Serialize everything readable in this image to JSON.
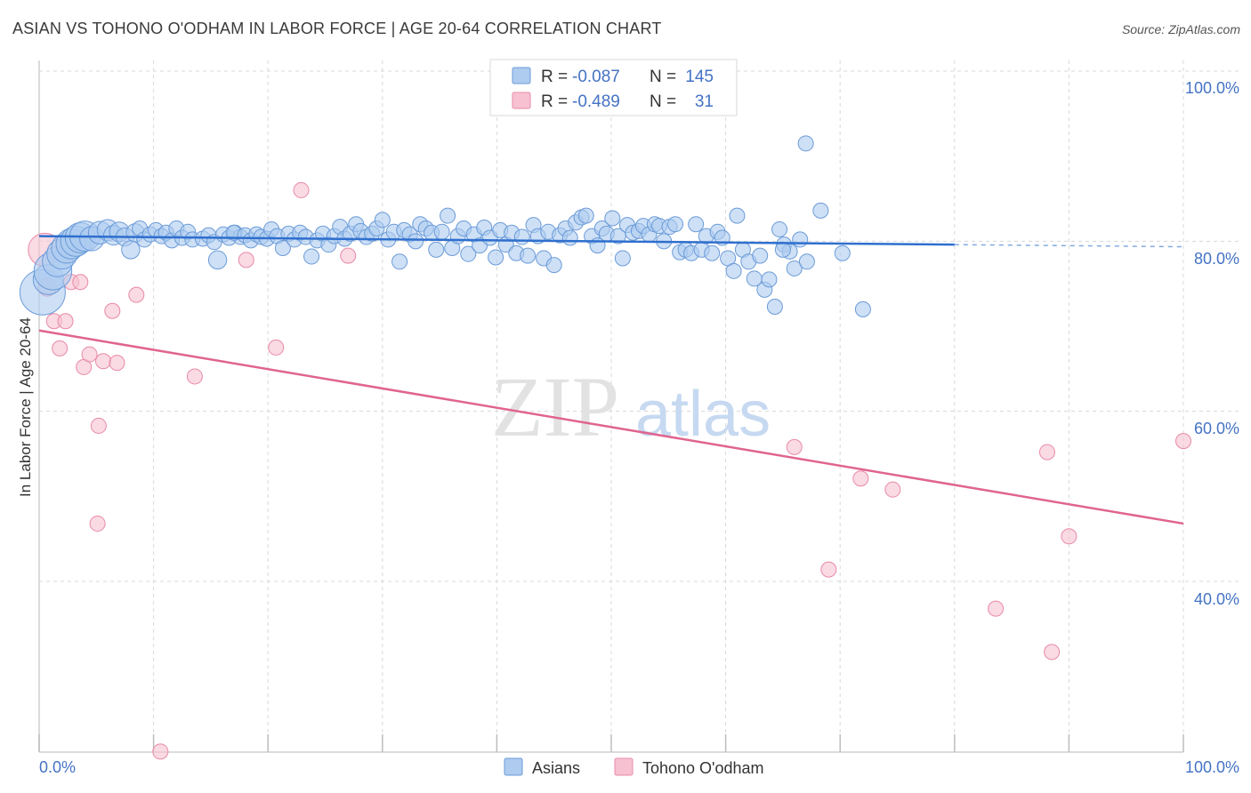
{
  "title": "ASIAN VS TOHONO O'ODHAM IN LABOR FORCE | AGE 20-64 CORRELATION CHART",
  "source": "Source: ZipAtlas.com",
  "watermark": {
    "zip": "ZIP",
    "atlas": "atlas"
  },
  "colors": {
    "asian_fill": "#aecbf0",
    "asian_stroke": "#6b9bd8",
    "asian_line": "#2f6fce",
    "tohono_fill": "#f7c1d1",
    "tohono_stroke": "#e88aa8",
    "tohono_line": "#e0648f",
    "tick_text": "#4472c4",
    "grid": "#d8d8d8"
  },
  "legend": {
    "rows": [
      {
        "r_label": "R =",
        "r_value": "-0.087",
        "n_label": "N =",
        "n_value": "145",
        "series": "asian"
      },
      {
        "r_label": "R =",
        "r_value": "-0.489",
        "n_label": "N =",
        "n_value": "31",
        "series": "tohono"
      }
    ]
  },
  "bottom_legend": [
    "Asians",
    "Tohono O'odham"
  ],
  "chart_data": {
    "type": "scatter",
    "title": "ASIAN VS TOHONO O'ODHAM IN LABOR FORCE | AGE 20-64 CORRELATION CHART",
    "xlabel": "",
    "ylabel": "In Labor Force | Age 20-64",
    "xlim": [
      0,
      100
    ],
    "ylim": [
      20,
      102
    ],
    "x_tick_labels": [
      "0.0%",
      "100.0%"
    ],
    "y_ticks": [
      40,
      60,
      80,
      100
    ],
    "y_tick_labels": [
      "40.0%",
      "60.0%",
      "80.0%",
      "100.0%"
    ],
    "grid": true,
    "legend_placement": "top-center",
    "series": [
      {
        "name": "Asians",
        "r": -0.087,
        "n": 145,
        "trend": {
          "x": [
            0,
            80
          ],
          "y": [
            80.6,
            79.6
          ],
          "dashed_extension_to": 100
        },
        "points": [
          [
            0.3,
            74.0,
            3
          ],
          [
            0.8,
            75.5,
            2
          ],
          [
            1.2,
            76.5,
            2.5
          ],
          [
            1.6,
            77.6,
            2
          ],
          [
            2.0,
            78.5,
            2
          ],
          [
            2.4,
            79.2,
            2
          ],
          [
            2.8,
            79.7,
            2
          ],
          [
            3.2,
            80.0,
            2
          ],
          [
            3.6,
            80.4,
            2
          ],
          [
            4.0,
            80.6,
            2
          ],
          [
            4.6,
            80.3,
            1.6
          ],
          [
            5.3,
            81.0,
            1.5
          ],
          [
            6.0,
            81.3,
            1.4
          ],
          [
            6.5,
            80.7,
            1.3
          ],
          [
            7.0,
            81.1,
            1.3
          ],
          [
            7.5,
            80.5,
            1.2
          ],
          [
            8.0,
            79.0,
            1.2
          ],
          [
            8.4,
            81.0,
            1.2
          ],
          [
            8.8,
            81.5,
            1
          ],
          [
            9.2,
            80.2,
            1
          ],
          [
            9.7,
            80.8,
            1
          ],
          [
            10.2,
            81.3,
            1
          ],
          [
            10.7,
            80.6,
            1
          ],
          [
            11.1,
            81.0,
            1
          ],
          [
            11.6,
            80.1,
            1
          ],
          [
            12.0,
            81.5,
            1
          ],
          [
            12.5,
            80.4,
            1
          ],
          [
            13.0,
            81.1,
            1
          ],
          [
            13.4,
            80.2,
            1
          ],
          [
            14.3,
            80.3,
            1
          ],
          [
            14.8,
            80.7,
            1
          ],
          [
            15.3,
            79.9,
            1
          ],
          [
            15.6,
            77.8,
            1.2
          ],
          [
            16.1,
            80.8,
            1
          ],
          [
            16.6,
            80.4,
            1
          ],
          [
            17.1,
            81.0,
            1
          ],
          [
            17.6,
            80.5,
            1
          ],
          [
            17.0,
            81.0,
            1
          ],
          [
            18.0,
            80.7,
            1
          ],
          [
            18.5,
            80.1,
            1
          ],
          [
            19.0,
            80.8,
            1
          ],
          [
            19.4,
            80.5,
            1
          ],
          [
            19.9,
            80.3,
            1
          ],
          [
            20.3,
            81.4,
            1
          ],
          [
            20.8,
            80.6,
            1
          ],
          [
            21.3,
            79.2,
            1
          ],
          [
            21.8,
            80.9,
            1
          ],
          [
            22.3,
            80.2,
            1
          ],
          [
            22.8,
            81.0,
            1
          ],
          [
            23.3,
            80.5,
            1
          ],
          [
            23.8,
            78.2,
            1
          ],
          [
            24.3,
            80.1,
            1
          ],
          [
            24.8,
            80.9,
            1
          ],
          [
            25.3,
            79.6,
            1
          ],
          [
            25.8,
            80.6,
            1
          ],
          [
            26.3,
            81.7,
            1
          ],
          [
            26.7,
            80.3,
            1
          ],
          [
            27.2,
            80.9,
            1
          ],
          [
            27.7,
            82.0,
            1
          ],
          [
            28.1,
            81.2,
            1
          ],
          [
            28.6,
            80.5,
            1
          ],
          [
            29.1,
            80.9,
            1
          ],
          [
            29.5,
            81.5,
            1
          ],
          [
            30.0,
            82.5,
            1
          ],
          [
            30.5,
            80.2,
            1
          ],
          [
            31.0,
            81.1,
            1
          ],
          [
            31.5,
            77.6,
            1
          ],
          [
            31.9,
            81.3,
            1
          ],
          [
            32.4,
            80.8,
            1
          ],
          [
            32.9,
            80.0,
            1
          ],
          [
            33.3,
            82.0,
            1
          ],
          [
            33.8,
            81.5,
            1
          ],
          [
            34.3,
            81.0,
            1
          ],
          [
            34.7,
            79.0,
            1
          ],
          [
            35.2,
            81.1,
            1
          ],
          [
            35.7,
            83.0,
            1
          ],
          [
            36.1,
            79.2,
            1
          ],
          [
            36.6,
            80.6,
            1
          ],
          [
            37.1,
            81.5,
            1
          ],
          [
            37.5,
            78.5,
            1
          ],
          [
            38.0,
            80.8,
            1
          ],
          [
            38.5,
            79.5,
            1
          ],
          [
            38.9,
            81.6,
            1
          ],
          [
            39.4,
            80.4,
            1
          ],
          [
            39.9,
            78.1,
            1
          ],
          [
            40.3,
            81.3,
            1
          ],
          [
            40.8,
            79.6,
            1
          ],
          [
            41.3,
            81.0,
            1
          ],
          [
            41.7,
            78.6,
            1
          ],
          [
            42.2,
            80.5,
            1
          ],
          [
            42.7,
            78.3,
            1
          ],
          [
            43.2,
            81.9,
            1
          ],
          [
            43.6,
            80.6,
            1
          ],
          [
            44.1,
            78.0,
            1
          ],
          [
            44.5,
            81.1,
            1
          ],
          [
            45.0,
            77.2,
            1
          ],
          [
            45.5,
            80.7,
            1
          ],
          [
            46.0,
            81.5,
            1
          ],
          [
            46.4,
            80.4,
            1
          ],
          [
            46.9,
            82.2,
            1
          ],
          [
            47.4,
            82.8,
            1
          ],
          [
            47.8,
            83.0,
            1
          ],
          [
            48.3,
            80.6,
            1
          ],
          [
            48.8,
            79.5,
            1
          ],
          [
            49.2,
            81.5,
            1
          ],
          [
            49.6,
            80.9,
            1
          ],
          [
            50.1,
            82.7,
            1
          ],
          [
            50.6,
            80.6,
            1
          ],
          [
            51.0,
            78.0,
            1
          ],
          [
            51.4,
            81.9,
            1
          ],
          [
            51.9,
            81.0,
            1
          ],
          [
            52.4,
            81.2,
            1
          ],
          [
            52.8,
            81.8,
            1
          ],
          [
            53.3,
            80.8,
            1
          ],
          [
            53.8,
            82.0,
            1
          ],
          [
            54.2,
            81.8,
            1
          ],
          [
            54.6,
            80.0,
            1
          ],
          [
            55.1,
            81.7,
            1
          ],
          [
            55.6,
            82.0,
            1
          ],
          [
            56.0,
            78.7,
            1
          ],
          [
            56.5,
            79.0,
            1
          ],
          [
            57.0,
            78.6,
            1
          ],
          [
            57.4,
            82.0,
            1
          ],
          [
            57.9,
            79.0,
            1
          ],
          [
            58.3,
            80.6,
            1
          ],
          [
            58.8,
            78.6,
            1
          ],
          [
            59.3,
            81.1,
            1
          ],
          [
            59.7,
            80.4,
            1
          ],
          [
            60.2,
            78.0,
            1
          ],
          [
            60.7,
            76.5,
            1
          ],
          [
            61.0,
            83.0,
            1
          ],
          [
            61.5,
            79.0,
            1
          ],
          [
            62.0,
            77.6,
            1
          ],
          [
            62.5,
            75.6,
            1
          ],
          [
            63.0,
            78.3,
            1
          ],
          [
            63.4,
            74.3,
            1
          ],
          [
            63.8,
            75.5,
            1
          ],
          [
            64.3,
            72.3,
            1
          ],
          [
            64.7,
            81.4,
            1
          ],
          [
            65.1,
            79.6,
            1
          ],
          [
            65.6,
            78.8,
            1
          ],
          [
            66.0,
            76.8,
            1
          ],
          [
            66.5,
            80.2,
            1
          ],
          [
            67.1,
            77.6,
            1
          ],
          [
            68.3,
            83.6,
            1
          ],
          [
            70.2,
            78.6,
            1
          ],
          [
            72.0,
            72.0,
            1
          ],
          [
            65.0,
            79.0,
            1
          ],
          [
            67.0,
            91.5,
            1
          ]
        ]
      },
      {
        "name": "Tohono O'odham",
        "r": -0.489,
        "n": 31,
        "trend": {
          "x": [
            0,
            100
          ],
          "y": [
            69.5,
            46.8
          ]
        },
        "points": [
          [
            0.5,
            79.0,
            2.2
          ],
          [
            0.7,
            74.6,
            1.2
          ],
          [
            1.3,
            70.6,
            1
          ],
          [
            1.8,
            67.4,
            1
          ],
          [
            2.3,
            70.6,
            1
          ],
          [
            2.8,
            75.2,
            1
          ],
          [
            3.6,
            75.2,
            1
          ],
          [
            3.9,
            65.2,
            1
          ],
          [
            4.4,
            66.7,
            1
          ],
          [
            5.2,
            58.3,
            1
          ],
          [
            5.1,
            46.8,
            1
          ],
          [
            5.6,
            65.9,
            1
          ],
          [
            6.4,
            71.8,
            1
          ],
          [
            6.8,
            65.7,
            1
          ],
          [
            8.5,
            73.7,
            1
          ],
          [
            10.6,
            20.0,
            1
          ],
          [
            13.6,
            64.1,
            1
          ],
          [
            18.1,
            77.8,
            1
          ],
          [
            20.7,
            67.5,
            1
          ],
          [
            22.9,
            86.0,
            1
          ],
          [
            27.0,
            78.3,
            1
          ],
          [
            47.3,
            100.0,
            1
          ],
          [
            66.0,
            55.8,
            1
          ],
          [
            69.0,
            41.4,
            1
          ],
          [
            71.8,
            52.1,
            1
          ],
          [
            74.6,
            50.8,
            1
          ],
          [
            83.6,
            36.8,
            1
          ],
          [
            88.1,
            55.2,
            1
          ],
          [
            88.5,
            31.7,
            1
          ],
          [
            90.0,
            45.3,
            1
          ],
          [
            100.0,
            56.5,
            1
          ]
        ]
      }
    ]
  }
}
